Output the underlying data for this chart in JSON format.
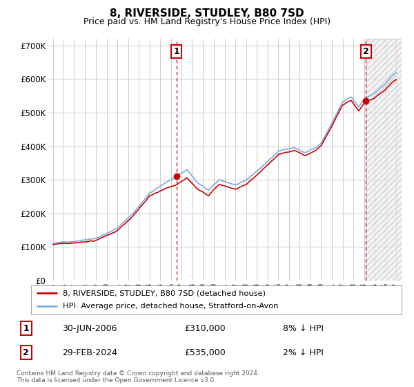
{
  "title": "8, RIVERSIDE, STUDLEY, B80 7SD",
  "subtitle": "Price paid vs. HM Land Registry's House Price Index (HPI)",
  "legend_label_red": "8, RIVERSIDE, STUDLEY, B80 7SD (detached house)",
  "legend_label_blue": "HPI: Average price, detached house, Stratford-on-Avon",
  "annotation1_label": "1",
  "annotation1_date": "30-JUN-2006",
  "annotation1_price": "£310,000",
  "annotation1_hpi": "8% ↓ HPI",
  "annotation1_year": 2006.5,
  "annotation1_value": 310000,
  "annotation2_label": "2",
  "annotation2_date": "29-FEB-2024",
  "annotation2_price": "£535,000",
  "annotation2_hpi": "2% ↓ HPI",
  "annotation2_year": 2024.17,
  "annotation2_value": 535000,
  "hpi_color": "#7aaadd",
  "price_color": "#cc0000",
  "dashed_line_color": "#cc0000",
  "ylim": [
    0,
    720000
  ],
  "yticks": [
    0,
    100000,
    200000,
    300000,
    400000,
    500000,
    600000,
    700000
  ],
  "ytick_labels": [
    "£0",
    "£100K",
    "£200K",
    "£300K",
    "£400K",
    "£500K",
    "£600K",
    "£700K"
  ],
  "xlim_start": 1994.5,
  "xlim_end": 2027.5,
  "footer_line1": "Contains HM Land Registry data © Crown copyright and database right 2024.",
  "footer_line2": "This data is licensed under the Open Government Licence v3.0.",
  "grid_color": "#cccccc",
  "background_color": "#ffffff"
}
